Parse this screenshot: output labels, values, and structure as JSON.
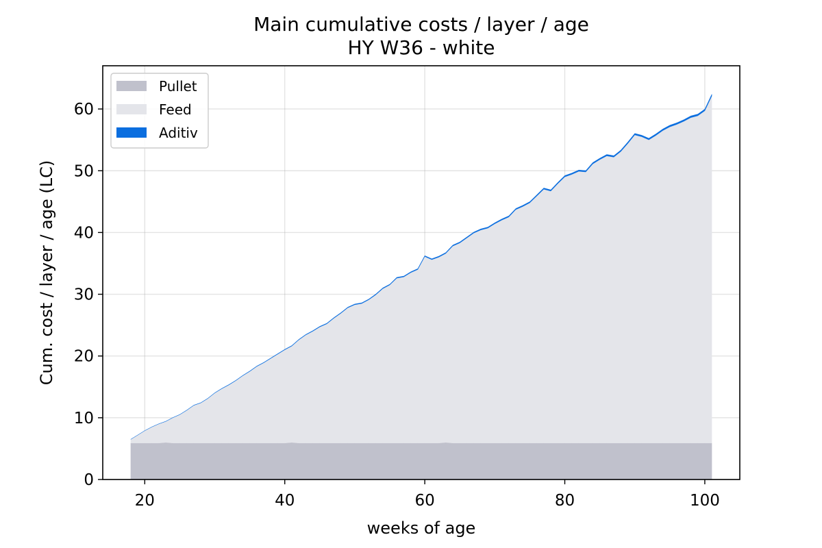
{
  "chart_data": {
    "type": "area",
    "title": "Main cumulative costs / layer / age",
    "subtitle": "HY W36 - white",
    "xlabel": "weeks of age",
    "ylabel": "Cum. cost / layer / age (LC)",
    "xlim": [
      14,
      105
    ],
    "ylim": [
      0,
      67
    ],
    "xticks": [
      20,
      40,
      60,
      80,
      100
    ],
    "yticks": [
      0,
      10,
      20,
      30,
      40,
      50,
      60
    ],
    "grid": true,
    "stacked": true,
    "legend_position": "top-left",
    "x": [
      18,
      19,
      20,
      21,
      22,
      23,
      24,
      25,
      26,
      27,
      28,
      29,
      30,
      31,
      32,
      33,
      34,
      35,
      36,
      37,
      38,
      39,
      40,
      41,
      42,
      43,
      44,
      45,
      46,
      47,
      48,
      49,
      50,
      51,
      52,
      53,
      54,
      55,
      56,
      57,
      58,
      59,
      60,
      61,
      62,
      63,
      64,
      65,
      66,
      67,
      68,
      69,
      70,
      71,
      72,
      73,
      74,
      75,
      76,
      77,
      78,
      79,
      80,
      81,
      82,
      83,
      84,
      85,
      86,
      87,
      88,
      89,
      90,
      91,
      92,
      93,
      94,
      95,
      96,
      97,
      98,
      99,
      100,
      101
    ],
    "series": [
      {
        "name": "Pullet",
        "color": "#c0c1cc",
        "values": [
          5.9,
          5.9,
          5.9,
          5.9,
          5.9,
          6.0,
          5.9,
          5.9,
          5.9,
          5.9,
          5.9,
          5.9,
          5.9,
          5.9,
          5.9,
          5.9,
          5.9,
          5.9,
          5.9,
          5.9,
          5.9,
          5.9,
          5.9,
          6.0,
          5.9,
          5.9,
          5.9,
          5.9,
          5.9,
          5.9,
          5.9,
          5.9,
          5.9,
          5.9,
          5.9,
          5.9,
          5.9,
          5.9,
          5.9,
          5.9,
          5.9,
          5.9,
          5.9,
          5.9,
          5.9,
          6.0,
          5.9,
          5.9,
          5.9,
          5.9,
          5.9,
          5.9,
          5.9,
          5.9,
          5.9,
          5.9,
          5.9,
          5.9,
          5.9,
          5.9,
          5.9,
          5.9,
          5.9,
          5.9,
          5.9,
          5.9,
          5.9,
          5.9,
          5.9,
          5.9,
          5.9,
          5.9,
          5.9,
          5.9,
          5.9,
          5.9,
          5.9,
          5.9,
          5.9,
          5.9,
          5.9,
          5.9,
          5.9,
          5.9
        ]
      },
      {
        "name": "Feed",
        "color": "#e4e5ea",
        "values": [
          0.6,
          1.3,
          2.0,
          2.6,
          3.1,
          3.4,
          4.1,
          4.6,
          5.3,
          6.1,
          6.5,
          7.2,
          8.1,
          8.8,
          9.4,
          10.1,
          10.9,
          11.6,
          12.4,
          13.0,
          13.7,
          14.4,
          15.1,
          15.6,
          16.7,
          17.5,
          18.1,
          18.8,
          19.3,
          20.2,
          21.0,
          21.9,
          22.4,
          22.6,
          23.2,
          24.0,
          25.0,
          25.6,
          26.7,
          26.9,
          27.6,
          28.1,
          30.2,
          29.7,
          30.1,
          30.6,
          31.9,
          32.4,
          33.2,
          34.0,
          34.5,
          34.8,
          35.5,
          36.1,
          36.6,
          37.8,
          38.3,
          38.9,
          40.0,
          41.1,
          40.8,
          42.0,
          43.1,
          43.5,
          44.0,
          43.9,
          45.2,
          45.9,
          46.5,
          46.3,
          47.2,
          48.5,
          49.9,
          49.6,
          49.1,
          49.8,
          50.6,
          51.2,
          51.6,
          52.1,
          52.7,
          53.0,
          53.8,
          56.2
        ]
      },
      {
        "name": "Aditiv",
        "color": "#0b6edf",
        "values": [
          0.01,
          0.01,
          0.02,
          0.02,
          0.02,
          0.03,
          0.03,
          0.03,
          0.04,
          0.04,
          0.04,
          0.05,
          0.05,
          0.05,
          0.06,
          0.06,
          0.06,
          0.07,
          0.07,
          0.07,
          0.08,
          0.08,
          0.08,
          0.09,
          0.09,
          0.09,
          0.1,
          0.1,
          0.1,
          0.11,
          0.11,
          0.11,
          0.12,
          0.12,
          0.12,
          0.13,
          0.13,
          0.13,
          0.14,
          0.14,
          0.14,
          0.15,
          0.15,
          0.15,
          0.16,
          0.16,
          0.16,
          0.17,
          0.17,
          0.17,
          0.18,
          0.18,
          0.18,
          0.19,
          0.19,
          0.19,
          0.2,
          0.2,
          0.2,
          0.21,
          0.21,
          0.21,
          0.22,
          0.22,
          0.22,
          0.23,
          0.23,
          0.23,
          0.24,
          0.24,
          0.24,
          0.25,
          0.25,
          0.25,
          0.26,
          0.26,
          0.26,
          0.27,
          0.27,
          0.27,
          0.28,
          0.28,
          0.28,
          0.29
        ]
      }
    ]
  }
}
